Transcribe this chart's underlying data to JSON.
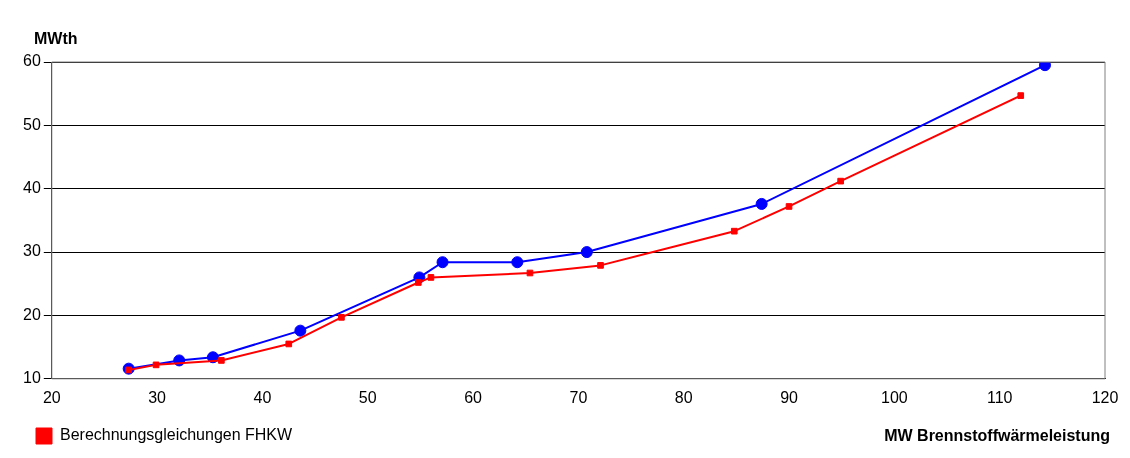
{
  "chart_data": {
    "type": "line",
    "xlabel": "MW Brennstoffwärmeleistung",
    "ylabel": "MWth",
    "xlim": [
      20,
      120
    ],
    "xticks": [
      20,
      30,
      40,
      50,
      60,
      70,
      80,
      90,
      100,
      110,
      120
    ],
    "ylim": [
      10,
      60
    ],
    "yticks": [
      10,
      20,
      30,
      40,
      50,
      60
    ],
    "grid": "y",
    "legend": "bottom left",
    "series": [
      {
        "color": "#0000ff",
        "marker": "circle",
        "x": [
          27.3,
          32.1,
          35.3,
          43.6,
          54.9,
          57.1,
          64.2,
          70.8,
          87.4,
          114.3
        ],
        "values": [
          11.6,
          12.9,
          13.4,
          17.6,
          26.0,
          28.4,
          28.4,
          30.0,
          37.6,
          59.5
        ]
      },
      {
        "name": "Berechnungsgleichungen FHKW",
        "color": "#ff0000",
        "marker": "square",
        "x": [
          27.3,
          29.9,
          36.1,
          42.5,
          47.5,
          54.8,
          56.0,
          65.4,
          72.1,
          84.8,
          90.0,
          94.9,
          112.0
        ],
        "values": [
          11.4,
          12.2,
          12.9,
          15.5,
          19.7,
          25.2,
          26.0,
          26.7,
          27.9,
          33.3,
          37.2,
          41.2,
          54.7
        ]
      }
    ]
  }
}
